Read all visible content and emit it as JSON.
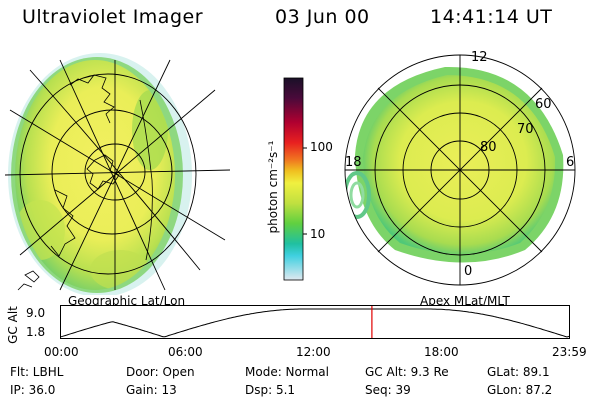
{
  "header": {
    "title": "Ultraviolet Imager",
    "date": "03 Jun 00",
    "time": "14:41:14 UT"
  },
  "left_map": {
    "label": "Geographic Lat/Lon"
  },
  "right_map": {
    "label": "Apex MLat/MLT",
    "mlt_labels": [
      "12",
      "18",
      "6",
      "0"
    ],
    "lat_labels": [
      "60",
      "70",
      "80"
    ]
  },
  "colorbar": {
    "unit_label": "photon cm⁻²s⁻¹",
    "ticks": [
      "100",
      "10"
    ],
    "scale": "log",
    "colors": [
      "#1a1028",
      "#4a0a3a",
      "#b00030",
      "#e82020",
      "#f07020",
      "#f0c020",
      "#f0f040",
      "#c0e040",
      "#60d040",
      "#20c0a0",
      "#40d0e0",
      "#e0e8f0"
    ]
  },
  "altitude_plot": {
    "ylabel": "GC Alt",
    "ytick_top": "9.0",
    "ytick_bottom": "1.8",
    "xticks": [
      "00:00",
      "06:00",
      "12:00",
      "18:00",
      "23:59"
    ],
    "current_time_hours": 14.69,
    "marker_color": "#e00000"
  },
  "info": {
    "row1": {
      "flt": "Flt: LBHL",
      "door": "Door: Open",
      "mode": "Mode: Normal",
      "gcalt": "GC Alt: 9.3 Re",
      "glat": "GLat:  89.1"
    },
    "row2": {
      "ip": "IP: 36.0",
      "gain": "Gain: 13",
      "dsp": "Dsp:    5.1",
      "seq": "Seq: 39",
      "glon": "GLon:  87.2"
    }
  }
}
